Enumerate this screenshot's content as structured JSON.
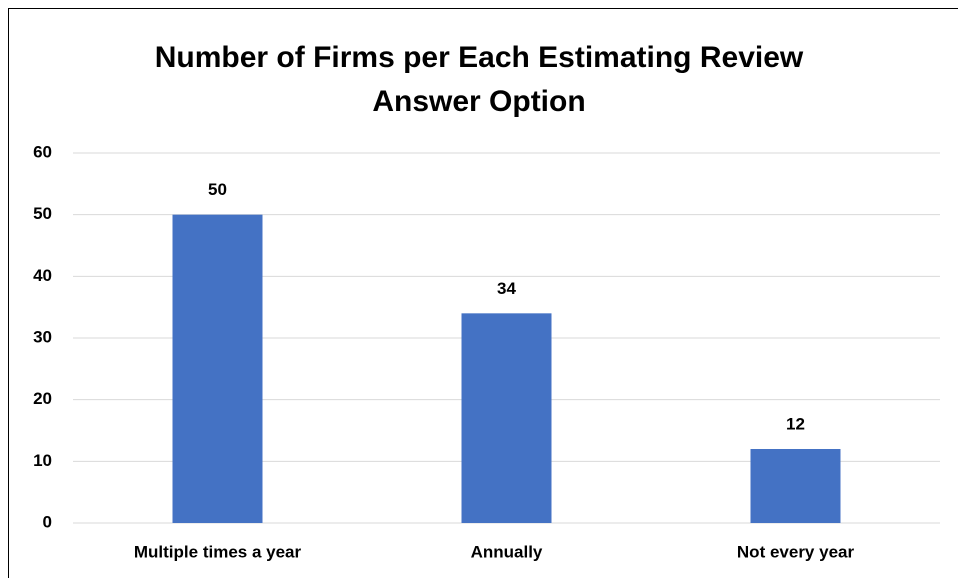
{
  "chart_data": {
    "type": "bar",
    "title": "Number of Firms per Each Estimating Review Answer Option",
    "categories": [
      "Multiple times a year",
      "Annually",
      "Not every year"
    ],
    "values": [
      50,
      34,
      12
    ],
    "color": "#4472c4",
    "ylim": [
      0,
      60
    ],
    "yticks": [
      0,
      10,
      20,
      30,
      40,
      50,
      60
    ],
    "grid": true
  }
}
